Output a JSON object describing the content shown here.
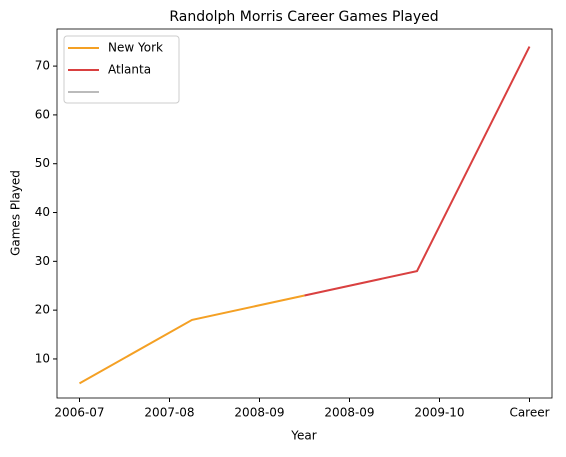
{
  "chart_data": {
    "type": "line",
    "title": "Randolph Morris Career Games Played",
    "xlabel": "Year",
    "ylabel": "Games Played",
    "x": [
      0,
      1,
      2,
      3,
      4
    ],
    "series": [
      {
        "name": "New York",
        "color": "#f4a024",
        "values": [
          5,
          18,
          23,
          null,
          null
        ]
      },
      {
        "name": "Atlanta",
        "color": "#d94040",
        "values": [
          null,
          null,
          23,
          28,
          74
        ]
      }
    ],
    "xlim": [
      -0.2,
      4.2
    ],
    "xticks": [
      {
        "value": 0,
        "label": "2006-07"
      },
      {
        "value": 0.8,
        "label": "2007-08"
      },
      {
        "value": 1.6,
        "label": "2008-09"
      },
      {
        "value": 2.4,
        "label": "2008-09"
      },
      {
        "value": 3.2,
        "label": "2009-10"
      },
      {
        "value": 4,
        "label": "Career"
      }
    ],
    "ylim": [
      2,
      77.6
    ],
    "yticks": [
      10,
      20,
      30,
      40,
      50,
      60,
      70
    ],
    "legend": "upper left"
  }
}
